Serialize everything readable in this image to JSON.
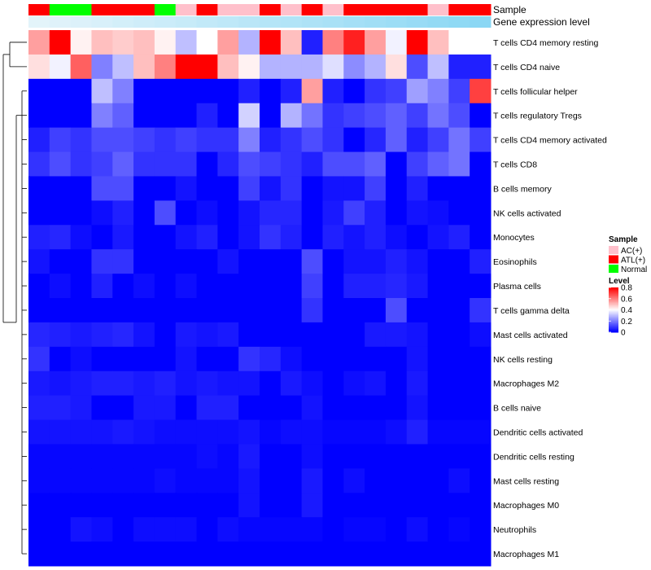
{
  "chart_data": {
    "type": "heatmap",
    "annotation_rows": [
      {
        "title": "Sample"
      },
      {
        "title": "Gene expression level"
      }
    ],
    "sample_groups": [
      "ATL(+)",
      "Normal",
      "Normal",
      "ATL(+)",
      "ATL(+)",
      "ATL(+)",
      "Normal",
      "AC(+)",
      "ATL(+)",
      "AC(+)",
      "AC(+)",
      "ATL(+)",
      "AC(+)",
      "ATL(+)",
      "AC(+)",
      "ATL(+)",
      "ATL(+)",
      "ATL(+)",
      "ATL(+)",
      "AC(+)",
      "ATL(+)",
      "ATL(+)"
    ],
    "group_colors": {
      "AC(+)": "#ffc0cb",
      "ATL(+)": "#ff0000",
      "Normal": "#00ff00"
    },
    "expression_levels": [
      0.05,
      0.08,
      0.1,
      0.13,
      0.16,
      0.19,
      0.22,
      0.25,
      0.28,
      0.31,
      0.34,
      0.37,
      0.4,
      0.43,
      0.46,
      0.49,
      0.52,
      0.55,
      0.58,
      0.61,
      0.64,
      0.67
    ],
    "expression_color_low": "#eaf6fb",
    "expression_color_high": "#5cc8f0",
    "rows": [
      {
        "label": "T cells CD4 memory resting",
        "values": [
          0.55,
          0.8,
          0.42,
          0.5,
          0.48,
          0.5,
          0.42,
          0.3,
          0.4,
          0.55,
          0.28,
          0.8,
          0.5,
          0.05,
          0.6,
          0.75,
          0.55,
          0.38,
          0.8,
          0.5,
          0.4,
          0.4
        ]
      },
      {
        "label": "T cells CD4 naive",
        "values": [
          0.45,
          0.38,
          0.65,
          0.2,
          0.3,
          0.5,
          0.6,
          0.8,
          0.8,
          0.5,
          0.42,
          0.28,
          0.28,
          0.28,
          0.35,
          0.22,
          0.28,
          0.45,
          0.12,
          0.3,
          0.05,
          0.05
        ]
      },
      {
        "label": "T cells follicular helper",
        "values": [
          0.0,
          0.0,
          0.0,
          0.3,
          0.2,
          0.0,
          0.0,
          0.0,
          0.0,
          0.0,
          0.05,
          0.0,
          0.05,
          0.55,
          0.05,
          0.0,
          0.08,
          0.1,
          0.25,
          0.2,
          0.1,
          0.7
        ]
      },
      {
        "label": "T cells regulatory  Tregs",
        "values": [
          0.0,
          0.0,
          0.0,
          0.2,
          0.15,
          0.0,
          0.0,
          0.0,
          0.05,
          0.0,
          0.33,
          0.0,
          0.28,
          0.18,
          0.08,
          0.1,
          0.12,
          0.15,
          0.1,
          0.18,
          0.12,
          0.0
        ]
      },
      {
        "label": "T cells CD4 memory activated",
        "values": [
          0.05,
          0.1,
          0.08,
          0.12,
          0.12,
          0.1,
          0.08,
          0.1,
          0.08,
          0.08,
          0.2,
          0.05,
          0.08,
          0.12,
          0.08,
          0.0,
          0.06,
          0.15,
          0.05,
          0.1,
          0.18,
          0.1
        ]
      },
      {
        "label": "T cells CD8",
        "values": [
          0.08,
          0.12,
          0.08,
          0.1,
          0.15,
          0.08,
          0.08,
          0.08,
          0.0,
          0.06,
          0.12,
          0.1,
          0.08,
          0.05,
          0.12,
          0.12,
          0.15,
          0.0,
          0.1,
          0.15,
          0.18,
          0.0
        ]
      },
      {
        "label": "B cells memory",
        "values": [
          0.0,
          0.0,
          0.0,
          0.12,
          0.12,
          0.0,
          0.0,
          0.03,
          0.0,
          0.0,
          0.1,
          0.03,
          0.08,
          0.0,
          0.03,
          0.03,
          0.1,
          0.0,
          0.05,
          0.0,
          0.0,
          0.0
        ]
      },
      {
        "label": "NK cells activated",
        "values": [
          0.0,
          0.0,
          0.0,
          0.02,
          0.05,
          0.0,
          0.12,
          0.0,
          0.02,
          0.0,
          0.03,
          0.06,
          0.06,
          0.0,
          0.04,
          0.1,
          0.05,
          0.0,
          0.03,
          0.02,
          0.0,
          0.0
        ]
      },
      {
        "label": "Monocytes",
        "values": [
          0.05,
          0.06,
          0.02,
          0.0,
          0.04,
          0.0,
          0.0,
          0.03,
          0.05,
          0.0,
          0.03,
          0.08,
          0.05,
          0.0,
          0.05,
          0.03,
          0.05,
          0.02,
          0.0,
          0.03,
          0.05,
          0.0
        ]
      },
      {
        "label": "Eosinophils",
        "values": [
          0.03,
          0.0,
          0.0,
          0.08,
          0.08,
          0.0,
          0.0,
          0.0,
          0.0,
          0.03,
          0.0,
          0.0,
          0.0,
          0.12,
          0.0,
          0.03,
          0.03,
          0.05,
          0.03,
          0.0,
          0.0,
          0.05
        ]
      },
      {
        "label": "Plasma cells",
        "values": [
          0.0,
          0.02,
          0.0,
          0.05,
          0.0,
          0.02,
          0.0,
          0.02,
          0.0,
          0.0,
          0.0,
          0.0,
          0.0,
          0.1,
          0.0,
          0.05,
          0.05,
          0.06,
          0.04,
          0.0,
          0.0,
          0.0
        ]
      },
      {
        "label": "T cells gamma delta",
        "values": [
          0.0,
          0.0,
          0.0,
          0.0,
          0.0,
          0.0,
          0.0,
          0.0,
          0.0,
          0.0,
          0.0,
          0.0,
          0.0,
          0.08,
          0.0,
          0.0,
          0.0,
          0.12,
          0.0,
          0.0,
          0.0,
          0.08
        ]
      },
      {
        "label": "Mast cells activated",
        "values": [
          0.06,
          0.05,
          0.04,
          0.05,
          0.06,
          0.03,
          0.0,
          0.04,
          0.03,
          0.04,
          0.0,
          0.0,
          0.0,
          0.0,
          0.0,
          0.0,
          0.04,
          0.04,
          0.03,
          0.0,
          0.0,
          0.02
        ]
      },
      {
        "label": "NK cells resting",
        "values": [
          0.08,
          0.0,
          0.02,
          0.0,
          0.0,
          0.0,
          0.0,
          0.03,
          0.0,
          0.0,
          0.08,
          0.06,
          0.02,
          0.0,
          0.0,
          0.0,
          0.0,
          0.0,
          0.03,
          0.0,
          0.0,
          0.0
        ]
      },
      {
        "label": "Macrophages M2",
        "values": [
          0.04,
          0.03,
          0.04,
          0.05,
          0.05,
          0.04,
          0.05,
          0.03,
          0.04,
          0.03,
          0.03,
          0.0,
          0.04,
          0.02,
          0.0,
          0.02,
          0.03,
          0.0,
          0.04,
          0.0,
          0.0,
          0.0
        ]
      },
      {
        "label": "B cells naive",
        "values": [
          0.05,
          0.05,
          0.04,
          0.0,
          0.0,
          0.04,
          0.04,
          0.0,
          0.05,
          0.05,
          0.0,
          0.0,
          0.0,
          0.03,
          0.0,
          0.0,
          0.0,
          0.0,
          0.03,
          0.0,
          0.0,
          0.0
        ]
      },
      {
        "label": "Dendritic cells activated",
        "values": [
          0.03,
          0.03,
          0.03,
          0.03,
          0.04,
          0.03,
          0.02,
          0.02,
          0.02,
          0.02,
          0.03,
          0.01,
          0.02,
          0.02,
          0.01,
          0.01,
          0.01,
          0.02,
          0.05,
          0.01,
          0.01,
          0.01
        ]
      },
      {
        "label": "Dendritic cells resting",
        "values": [
          0.01,
          0.01,
          0.01,
          0.01,
          0.01,
          0.01,
          0.01,
          0.01,
          0.02,
          0.01,
          0.04,
          0.0,
          0.0,
          0.02,
          0.0,
          0.0,
          0.0,
          0.0,
          0.0,
          0.0,
          0.0,
          0.0
        ]
      },
      {
        "label": "Mast cells resting",
        "values": [
          0.01,
          0.01,
          0.01,
          0.01,
          0.01,
          0.01,
          0.02,
          0.01,
          0.01,
          0.01,
          0.03,
          0.0,
          0.0,
          0.04,
          0.0,
          0.02,
          0.0,
          0.0,
          0.0,
          0.0,
          0.02,
          0.0
        ]
      },
      {
        "label": "Macrophages M0",
        "values": [
          0.0,
          0.0,
          0.0,
          0.0,
          0.0,
          0.0,
          0.0,
          0.0,
          0.0,
          0.0,
          0.03,
          0.0,
          0.0,
          0.04,
          0.0,
          0.0,
          0.0,
          0.0,
          0.0,
          0.0,
          0.0,
          0.0
        ]
      },
      {
        "label": "Neutrophils",
        "values": [
          0.0,
          0.0,
          0.03,
          0.02,
          0.0,
          0.02,
          0.02,
          0.02,
          0.0,
          0.02,
          0.01,
          0.01,
          0.01,
          0.01,
          0.0,
          0.01,
          0.01,
          0.0,
          0.02,
          0.0,
          0.01,
          0.0
        ]
      },
      {
        "label": "Macrophages M1",
        "values": [
          0.0,
          0.0,
          0.0,
          0.0,
          0.0,
          0.0,
          0.0,
          0.0,
          0.0,
          0.0,
          0.0,
          0.0,
          0.0,
          0.0,
          0.0,
          0.0,
          0.0,
          0.0,
          0.0,
          0.0,
          0.0,
          0.0
        ]
      }
    ],
    "color_scale": {
      "min": 0,
      "mid": 0.4,
      "max": 0.8,
      "low": "#0000ff",
      "mid_color": "#ffffff",
      "high": "#ff0000"
    },
    "legend": {
      "sample_title": "Sample",
      "sample_entries": [
        "AC(+)",
        "ATL(+)",
        "Normal"
      ],
      "level_title": "Level",
      "level_ticks": [
        "0.8",
        "0.6",
        "0.4",
        "0.2",
        "0"
      ]
    },
    "row_dendrogram": true,
    "legend_position": "right"
  }
}
